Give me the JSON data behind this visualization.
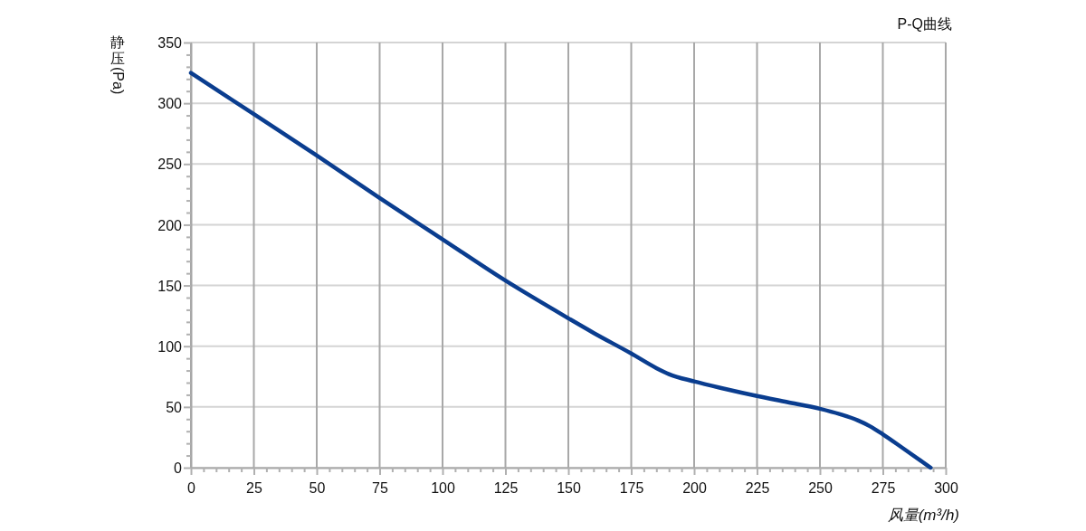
{
  "chart_data": {
    "type": "line",
    "title": "P-Q曲线",
    "xlabel": "风量(m³/h)",
    "ylabel": "静压(Pa)",
    "x": [
      0,
      25,
      50,
      75,
      100,
      125,
      150,
      160,
      175,
      185,
      190,
      200,
      212,
      225,
      237,
      250,
      258,
      265,
      270,
      275,
      283,
      294
    ],
    "series": [
      {
        "color": "#0a3d8f",
        "values": [
          325,
          291,
          257,
          222,
          188,
          154,
          123,
          111,
          94,
          82,
          77,
          71,
          65,
          59,
          54,
          48.5,
          44,
          39,
          34,
          27.5,
          16,
          0
        ]
      }
    ],
    "xlim": [
      0,
      300
    ],
    "ylim": [
      0,
      350
    ],
    "xticks": [
      0,
      {
        "value": 5,
        "label": null
      },
      {
        "value": 10,
        "label": null
      },
      {
        "value": 15,
        "label": null
      },
      {
        "value": 20,
        "label": null
      },
      25,
      {
        "value": 30,
        "label": null
      },
      {
        "value": 35,
        "label": null
      },
      {
        "value": 40,
        "label": null
      },
      {
        "value": 45,
        "label": null
      },
      50,
      {
        "value": 55,
        "label": null
      },
      {
        "value": 60,
        "label": null
      },
      {
        "value": 65,
        "label": null
      },
      {
        "value": 70,
        "label": null
      },
      75,
      {
        "value": 80,
        "label": null
      },
      {
        "value": 85,
        "label": null
      },
      {
        "value": 90,
        "label": null
      },
      {
        "value": 95,
        "label": null
      },
      100,
      {
        "value": 105,
        "label": null
      },
      {
        "value": 110,
        "label": null
      },
      {
        "value": 115,
        "label": null
      },
      {
        "value": 120,
        "label": null
      },
      125,
      {
        "value": 130,
        "label": null
      },
      {
        "value": 135,
        "label": null
      },
      {
        "value": 140,
        "label": null
      },
      {
        "value": 145,
        "label": null
      },
      150,
      {
        "value": 155,
        "label": null
      },
      {
        "value": 160,
        "label": null
      },
      {
        "value": 165,
        "label": null
      },
      {
        "value": 170,
        "label": null
      },
      175,
      {
        "value": 180,
        "label": null
      },
      {
        "value": 185,
        "label": null
      },
      {
        "value": 190,
        "label": null
      },
      {
        "value": 195,
        "label": null
      },
      200,
      {
        "value": 205,
        "label": null
      },
      {
        "value": 210,
        "label": null
      },
      {
        "value": 215,
        "label": null
      },
      {
        "value": 220,
        "label": null
      },
      225,
      {
        "value": 230,
        "label": null
      },
      {
        "value": 235,
        "label": null
      },
      {
        "value": 240,
        "label": null
      },
      {
        "value": 245,
        "label": null
      },
      250,
      {
        "value": 255,
        "label": null
      },
      {
        "value": 260,
        "label": null
      },
      {
        "value": 265,
        "label": null
      },
      {
        "value": 270,
        "label": null
      },
      275,
      {
        "value": 280,
        "label": null
      },
      {
        "value": 285,
        "label": null
      },
      {
        "value": 290,
        "label": null
      },
      {
        "value": 295,
        "label": null
      },
      300
    ],
    "yticks": [
      0,
      {
        "value": 10,
        "label": null
      },
      {
        "value": 20,
        "label": null
      },
      {
        "value": 30,
        "label": null
      },
      {
        "value": 40,
        "label": null
      },
      50,
      {
        "value": 60,
        "label": null
      },
      {
        "value": 70,
        "label": null
      },
      {
        "value": 80,
        "label": null
      },
      {
        "value": 90,
        "label": null
      },
      100,
      {
        "value": 110,
        "label": null
      },
      {
        "value": 120,
        "label": null
      },
      {
        "value": 130,
        "label": null
      },
      {
        "value": 140,
        "label": null
      },
      150,
      {
        "value": 160,
        "label": null
      },
      {
        "value": 170,
        "label": null
      },
      {
        "value": 180,
        "label": null
      },
      {
        "value": 190,
        "label": null
      },
      200,
      {
        "value": 210,
        "label": null
      },
      {
        "value": 220,
        "label": null
      },
      {
        "value": 230,
        "label": null
      },
      {
        "value": 240,
        "label": null
      },
      250,
      {
        "value": 260,
        "label": null
      },
      {
        "value": 270,
        "label": null
      },
      {
        "value": 280,
        "label": null
      },
      {
        "value": 290,
        "label": null
      },
      300,
      {
        "value": 310,
        "label": null
      },
      {
        "value": 320,
        "label": null
      },
      {
        "value": 330,
        "label": null
      },
      {
        "value": 340,
        "label": null
      },
      350
    ],
    "grid": true,
    "marker": "none",
    "line_style": "solid"
  }
}
